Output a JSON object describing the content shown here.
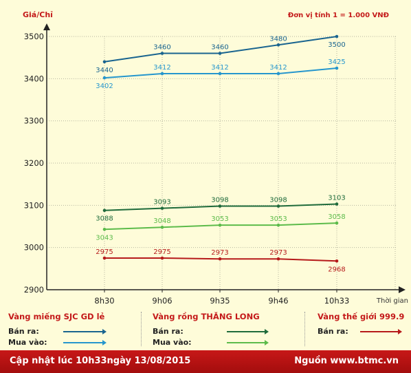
{
  "header": {
    "y_unit": "Giá/Chỉ",
    "note": "Đơn vị tính 1 = 1.000 VNĐ"
  },
  "chart_data": {
    "type": "line",
    "title": "",
    "ylabel": "Giá/Chỉ",
    "xlabel": "Thời gian",
    "categories": [
      "8h30",
      "9h06",
      "9h35",
      "9h46",
      "10h33"
    ],
    "y_ticks": [
      2900,
      3000,
      3100,
      3200,
      3300,
      3400,
      3500
    ],
    "ylim": [
      2900,
      3500
    ],
    "grid": true,
    "series": [
      {
        "group": "Vàng miếng SJC GD lẻ",
        "name": "Bán ra:",
        "color": "#19648f",
        "values": [
          3440,
          3460,
          3460,
          3480,
          3500
        ],
        "labels_above": true
      },
      {
        "group": "Vàng miếng SJC GD lẻ",
        "name": "Mua vào:",
        "color": "#2596cd",
        "values": [
          3402,
          3412,
          3412,
          3412,
          3425
        ],
        "labels_above": false
      },
      {
        "group": "Vàng rồng THĂNG LONG",
        "name": "Bán ra:",
        "color": "#1f6b3b",
        "values": [
          3088,
          3093,
          3098,
          3098,
          3103
        ],
        "labels_above": true
      },
      {
        "group": "Vàng rồng THĂNG LONG",
        "name": "Mua vào:",
        "color": "#5cbb4a",
        "values": [
          3043,
          3048,
          3053,
          3053,
          3058
        ],
        "labels_above": false
      },
      {
        "group": "Vàng thế giới 999.9",
        "name": "Bán ra:",
        "color": "#b61a1a",
        "values": [
          2975,
          2975,
          2973,
          2973,
          2968
        ],
        "labels_above": true
      }
    ],
    "data_labels": [
      {
        "series": 0,
        "point": 0,
        "text": "3440",
        "pos": "below"
      },
      {
        "series": 0,
        "point": 1,
        "text": "3460",
        "pos": "above"
      },
      {
        "series": 0,
        "point": 2,
        "text": "3460",
        "pos": "above"
      },
      {
        "series": 0,
        "point": 3,
        "text": "3480",
        "pos": "above"
      },
      {
        "series": 0,
        "point": 4,
        "text": "3500",
        "pos": "below"
      },
      {
        "series": 1,
        "point": 0,
        "text": "3402",
        "pos": "below"
      },
      {
        "series": 1,
        "point": 1,
        "text": "3412",
        "pos": "above"
      },
      {
        "series": 1,
        "point": 2,
        "text": "3412",
        "pos": "above"
      },
      {
        "series": 1,
        "point": 3,
        "text": "3412",
        "pos": "above"
      },
      {
        "series": 1,
        "point": 4,
        "text": "3425",
        "pos": "above"
      },
      {
        "series": 2,
        "point": 0,
        "text": "3088",
        "pos": "below"
      },
      {
        "series": 2,
        "point": 1,
        "text": "3093",
        "pos": "above"
      },
      {
        "series": 2,
        "point": 2,
        "text": "3098",
        "pos": "above"
      },
      {
        "series": 2,
        "point": 3,
        "text": "3098",
        "pos": "above"
      },
      {
        "series": 2,
        "point": 4,
        "text": "3103",
        "pos": "above"
      },
      {
        "series": 3,
        "point": 0,
        "text": "3043",
        "pos": "below"
      },
      {
        "series": 3,
        "point": 1,
        "text": "3048",
        "pos": "above"
      },
      {
        "series": 3,
        "point": 2,
        "text": "3053",
        "pos": "above"
      },
      {
        "series": 3,
        "point": 3,
        "text": "3053",
        "pos": "above"
      },
      {
        "series": 3,
        "point": 4,
        "text": "3058",
        "pos": "above"
      },
      {
        "series": 4,
        "point": 0,
        "text": "2975",
        "pos": "above"
      },
      {
        "series": 4,
        "point": 1,
        "text": "2975",
        "pos": "above"
      },
      {
        "series": 4,
        "point": 2,
        "text": "2973",
        "pos": "above"
      },
      {
        "series": 4,
        "point": 3,
        "text": "2973",
        "pos": "above"
      },
      {
        "series": 4,
        "point": 4,
        "text": "2968",
        "pos": "below"
      }
    ]
  },
  "legend": {
    "groups": [
      {
        "title": "Vàng miếng SJC GD lẻ",
        "rows": [
          {
            "label": "Bán ra:",
            "color": "#19648f"
          },
          {
            "label": "Mua vào:",
            "color": "#2596cd"
          }
        ]
      },
      {
        "title": "Vàng rồng THĂNG LONG",
        "rows": [
          {
            "label": "Bán ra:",
            "color": "#1f6b3b"
          },
          {
            "label": "Mua vào:",
            "color": "#5cbb4a"
          }
        ]
      },
      {
        "title": "Vàng thế giới 999.9",
        "rows": [
          {
            "label": "Bán ra:",
            "color": "#b61a1a"
          }
        ]
      }
    ]
  },
  "footer": {
    "updated": "Cập nhật lúc 10h33ngày 13/08/2015",
    "source": "Nguồn www.btmc.vn"
  },
  "colors": {
    "background": "#fefcd9",
    "accent_red": "#c41a1a",
    "grid": "#b5b5a0"
  }
}
